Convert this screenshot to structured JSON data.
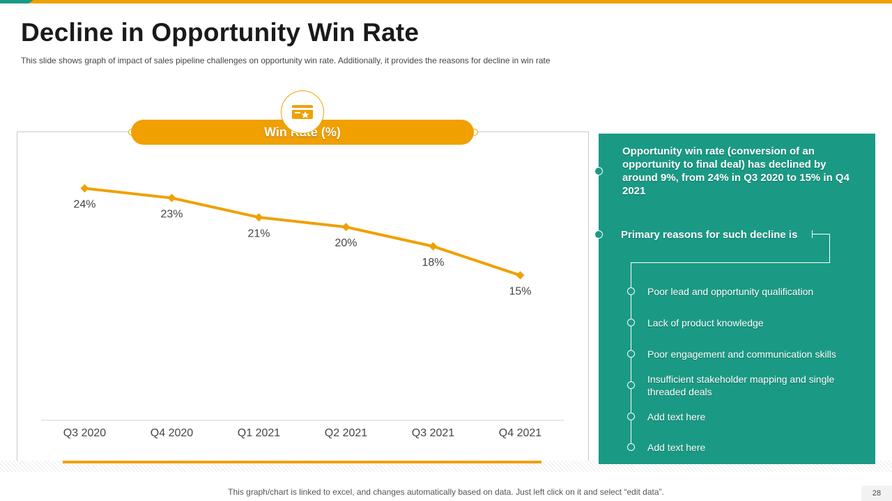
{
  "slide": {
    "title": "Decline in Opportunity Win Rate",
    "subtitle": "This slide shows graph of impact of sales pipeline challenges on opportunity win rate. Additionally, it provides the reasons for decline in win rate",
    "footer": "This graph/chart is linked to excel, and changes automatically based on data. Just left click on it and select “edit data”.",
    "page_number": "28",
    "icon": "wallet-star-icon"
  },
  "colors": {
    "accent": "#f0a000",
    "panel": "#1a9a85",
    "teal_accent": "#1a9a85",
    "axis": "#d0d0d0",
    "label": "#444444"
  },
  "chart_data": {
    "type": "line",
    "title": "Win Rate (%)",
    "categories": [
      "Q3 2020",
      "Q4 2020",
      "Q1 2021",
      "Q2 2021",
      "Q3 2021",
      "Q4 2021"
    ],
    "series": [
      {
        "name": "Win Rate (%)",
        "values": [
          24,
          23,
          21,
          20,
          18,
          15
        ]
      }
    ],
    "value_labels": [
      "24%",
      "23%",
      "21%",
      "20%",
      "18%",
      "15%"
    ],
    "ylim": [
      0,
      27
    ],
    "grid": false,
    "legend": "none",
    "xlabel": "",
    "ylabel": ""
  },
  "panel": {
    "lead": "Opportunity win rate (conversion of an opportunity to final deal) has declined by around 9%, from 24% in Q3 2020 to 15% in Q4 2021",
    "reason_heading": "Primary reasons for such decline is",
    "reasons": [
      "Poor lead and opportunity qualification",
      "Lack of product knowledge",
      "Poor engagement and communication skills",
      "Insufficient stakeholder mapping and single threaded deals",
      "Add text here",
      "Add text here"
    ]
  }
}
